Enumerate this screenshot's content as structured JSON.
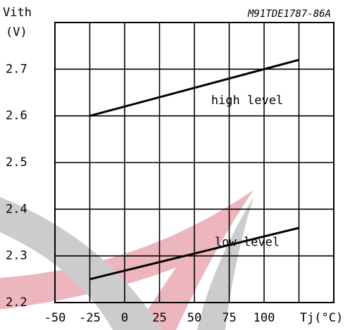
{
  "chart_data": {
    "type": "line",
    "code": "M91TDE1787-86A",
    "y_label": "Vith",
    "y_unit": "(V)",
    "x": [
      -25,
      125
    ],
    "series": [
      {
        "name": "high level",
        "color": "#000000",
        "values": [
          2.6,
          2.72
        ]
      },
      {
        "name": "low level",
        "color": "#000000",
        "values": [
          2.25,
          2.36
        ]
      }
    ],
    "xlim": [
      -50,
      150
    ],
    "ylim": [
      2.2,
      2.8
    ],
    "xticks": [
      -50,
      -25,
      0,
      25,
      50,
      75,
      100,
      {
        "value": 125,
        "label": "Tj(°C)"
      }
    ],
    "yticks": [
      2.2,
      2.3,
      2.4,
      2.5,
      2.6,
      2.7
    ],
    "grid": true
  }
}
